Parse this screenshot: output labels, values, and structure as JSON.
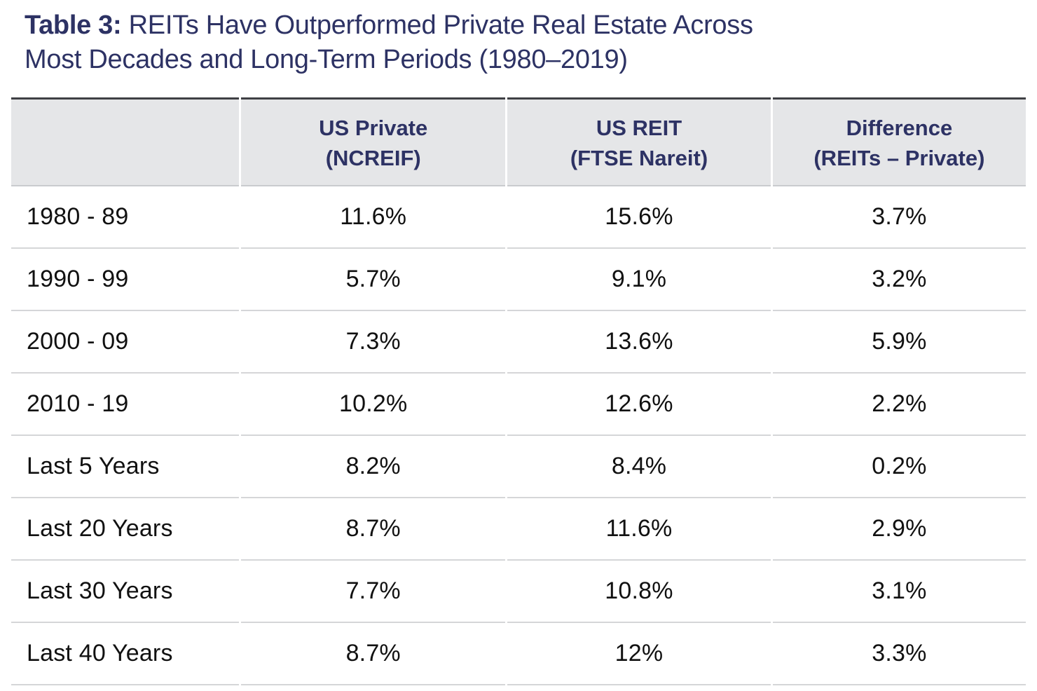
{
  "title": {
    "prefix": "Table 3:",
    "line1": "REITs Have Outperformed Private Real Estate Across",
    "line2": "Most Decades and Long-Term Periods (1980–2019)"
  },
  "table": {
    "headers": [
      {
        "line1": "",
        "line2": ""
      },
      {
        "line1": "US Private",
        "line2": "(NCREIF)"
      },
      {
        "line1": "US REIT",
        "line2": "(FTSE Nareit)"
      },
      {
        "line1": "Difference",
        "line2": "(REITs – Private)"
      }
    ],
    "rows": [
      {
        "period": "1980 - 89",
        "private": "11.6%",
        "reit": "15.6%",
        "difference": "3.7%"
      },
      {
        "period": "1990 - 99",
        "private": "5.7%",
        "reit": "9.1%",
        "difference": "3.2%"
      },
      {
        "period": "2000 - 09",
        "private": "7.3%",
        "reit": "13.6%",
        "difference": "5.9%"
      },
      {
        "period": "2010 - 19",
        "private": "10.2%",
        "reit": "12.6%",
        "difference": "2.2%"
      },
      {
        "period": "Last 5 Years",
        "private": "8.2%",
        "reit": "8.4%",
        "difference": "0.2%"
      },
      {
        "period": "Last 20 Years",
        "private": "8.7%",
        "reit": "11.6%",
        "difference": "2.9%"
      },
      {
        "period": "Last 30 Years",
        "private": "7.7%",
        "reit": "10.8%",
        "difference": "3.1%"
      },
      {
        "period": "Last 40 Years",
        "private": "8.7%",
        "reit": "12%",
        "difference": "3.3%"
      }
    ]
  },
  "colors": {
    "title_navy": "#2d3264",
    "header_bg": "#e5e6e8",
    "header_top_border": "#3f4044",
    "row_divider": "#d5d6d8",
    "body_text": "#111111"
  },
  "chart_data": {
    "type": "table",
    "title": "Table 3: REITs Have Outperformed Private Real Estate Across Most Decades and Long-Term Periods (1980–2019)",
    "columns": [
      "",
      "US Private (NCREIF)",
      "US REIT (FTSE Nareit)",
      "Difference (REITs – Private)"
    ],
    "categories": [
      "1980 - 89",
      "1990 - 99",
      "2000 - 09",
      "2010 - 19",
      "Last 5 Years",
      "Last 20 Years",
      "Last 30 Years",
      "Last 40 Years"
    ],
    "series": [
      {
        "name": "US Private (NCREIF)",
        "values": [
          11.6,
          5.7,
          7.3,
          10.2,
          8.2,
          8.7,
          7.7,
          8.7
        ]
      },
      {
        "name": "US REIT (FTSE Nareit)",
        "values": [
          15.6,
          9.1,
          13.6,
          12.6,
          8.4,
          11.6,
          10.8,
          12.0
        ]
      },
      {
        "name": "Difference (REITs – Private)",
        "values": [
          3.7,
          3.2,
          5.9,
          2.2,
          0.2,
          2.9,
          3.1,
          3.3
        ]
      }
    ],
    "units": "percent"
  }
}
